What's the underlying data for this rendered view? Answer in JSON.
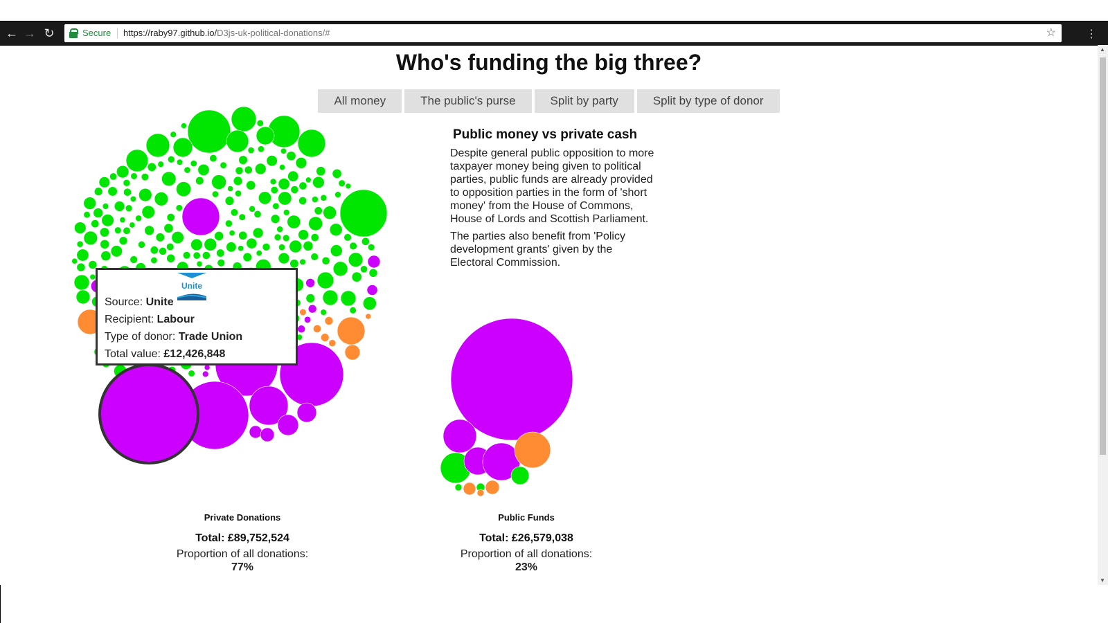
{
  "browser": {
    "secure_label": "Secure",
    "url_host": "https://raby97.github.io/",
    "url_path": "D3js-uk-political-donations/#"
  },
  "page": {
    "title": "Who's funding the big three?",
    "tabs": [
      "All money",
      "The public's purse",
      "Split by party",
      "Split by type of donor"
    ]
  },
  "explainer": {
    "heading": "Public money vs private cash",
    "paragraph1": "Despite general public opposition to more taxpayer money being given to political parties, public funds are already provided to opposition parties in the form of 'short money' from the House of Commons, House of Lords and Scottish Parliament.",
    "paragraph2": "The parties also benefit from 'Policy development grants' given by the Electoral Commission."
  },
  "clusters": {
    "private": {
      "label": "Private Donations",
      "total_label": "Total:",
      "total_value": "£89,752,524",
      "proportion_label": "Proportion of all donations:",
      "proportion_value": "77%"
    },
    "public": {
      "label": "Public Funds",
      "total_label": "Total:",
      "total_value": "£26,579,038",
      "proportion_label": "Proportion of all donations:",
      "proportion_value": "23%"
    }
  },
  "tooltip": {
    "source_label": "Source:",
    "source_value": "Unite",
    "recipient_label": "Recipient:",
    "recipient_value": "Labour",
    "type_label": "Type of donor:",
    "type_value": "Trade Union",
    "value_label": "Total value:",
    "value_value": "£12,426,848",
    "logo_text": "Unite"
  },
  "colors": {
    "green": "#00e600",
    "purple": "#cc00ff",
    "orange": "#ff8c33",
    "highlight_stroke": "#333333"
  },
  "icons": [
    "back-arrow-icon",
    "forward-arrow-icon",
    "reload-icon",
    "lock-icon",
    "star-icon",
    "menu-icon"
  ]
}
